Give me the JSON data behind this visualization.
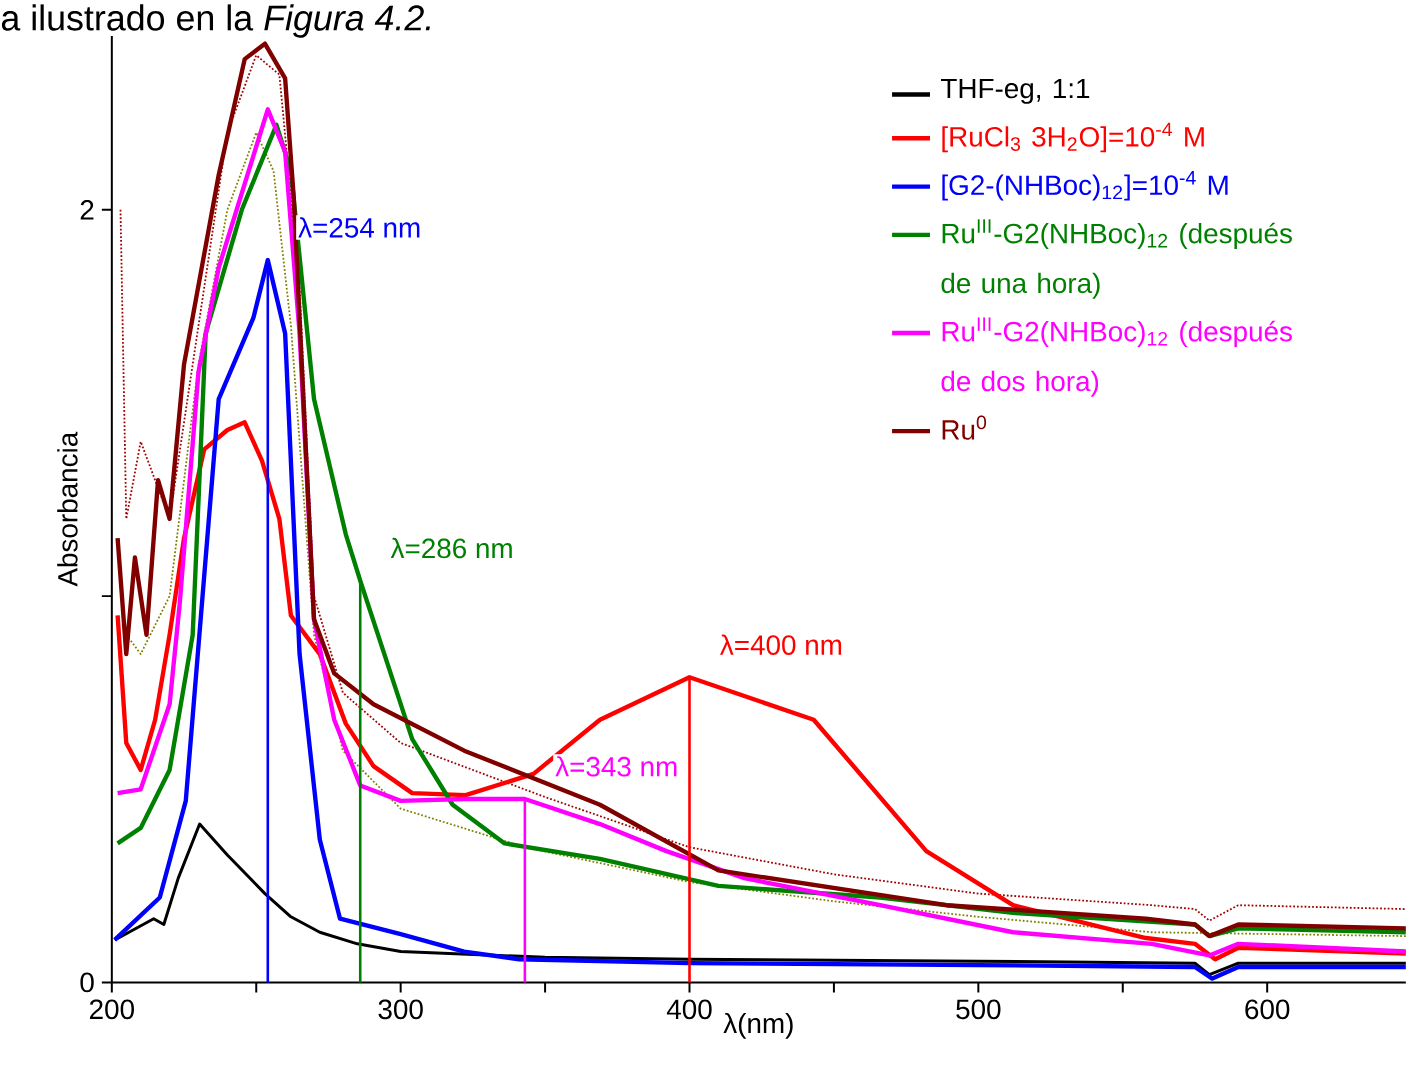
{
  "chart_data": {
    "type": "line",
    "xlabel": "λ(nm)",
    "ylabel": "Absorbancia",
    "annotations": [
      "a ilustrado en la *Figura 4.2.*"
    ],
    "xlim": [
      200,
      648
    ],
    "ylim": [
      0,
      2.45
    ],
    "xticks": [
      200,
      {
        "value": 250,
        "label": null
      },
      300,
      {
        "value": 350,
        "label": null
      },
      400,
      {
        "value": 450,
        "label": null
      },
      500,
      {
        "value": 550,
        "label": null
      },
      600
    ],
    "yticks": [
      0,
      {
        "value": 1,
        "label": null
      },
      2
    ],
    "grid": false,
    "legend": "top right",
    "marker": "none",
    "line_style": "solid",
    "ref_lines": [
      {
        "axis": "x",
        "value": 254,
        "label": "λ=254 nm",
        "color": "#0000ff"
      },
      {
        "axis": "x",
        "value": 286,
        "label": "λ=286 nm",
        "color": "#008000"
      },
      {
        "axis": "x",
        "value": 343,
        "label": "λ=343 nm",
        "color": "#ff00ff"
      },
      {
        "axis": "x",
        "value": 400,
        "label": "λ=400 nm",
        "color": "#ff0000"
      }
    ],
    "series": [
      {
        "color": "#808000",
        "line_style": "dotted",
        "x": [
          205,
          210,
          220,
          230,
          240,
          250,
          256,
          262,
          270,
          280,
          300,
          343,
          400,
          450,
          500,
          560,
          648
        ],
        "values": [
          0.9,
          0.85,
          1.0,
          1.6,
          2.0,
          2.2,
          2.1,
          1.7,
          0.9,
          0.6,
          0.45,
          0.35,
          0.26,
          0.21,
          0.17,
          0.13,
          0.12
        ]
      },
      {
        "color": "#a00000",
        "line_style": "dotted",
        "x": [
          203,
          205,
          210,
          220,
          230,
          240,
          250,
          258,
          265,
          270,
          280,
          300,
          350,
          400,
          450,
          500,
          560,
          575,
          580,
          590,
          648
        ],
        "values": [
          2.0,
          1.2,
          1.4,
          1.2,
          1.7,
          2.2,
          2.4,
          2.35,
          1.8,
          1.0,
          0.75,
          0.62,
          0.48,
          0.35,
          0.28,
          0.23,
          0.2,
          0.19,
          0.16,
          0.2,
          0.19
        ]
      },
      {
        "name": "THF-eg, 1:1",
        "color": "#000000",
        "x": [
          201,
          214.5,
          218,
          223,
          230.4,
          240,
          253,
          262,
          272,
          285,
          300,
          350,
          400,
          500,
          575,
          580,
          590,
          648
        ],
        "values": [
          0.11,
          0.165,
          0.15,
          0.27,
          0.41,
          0.33,
          0.23,
          0.17,
          0.13,
          0.1,
          0.08,
          0.065,
          0.06,
          0.055,
          0.05,
          0.02,
          0.05,
          0.05
        ]
      },
      {
        "name": "[RuCl$_{3}$ 3H$_{2}$O]=10$^{-4}$ M",
        "color": "#ff0000",
        "x": [
          202,
          205,
          210,
          215,
          220,
          225,
          232,
          240,
          246,
          252,
          258,
          262,
          272,
          281,
          290.6,
          304,
          322.5,
          346,
          369,
          400,
          443,
          482,
          512,
          558,
          575,
          582,
          590,
          648
        ],
        "values": [
          0.95,
          0.62,
          0.55,
          0.68,
          0.9,
          1.15,
          1.38,
          1.43,
          1.45,
          1.35,
          1.2,
          0.95,
          0.85,
          0.67,
          0.56,
          0.49,
          0.485,
          0.54,
          0.68,
          0.79,
          0.68,
          0.34,
          0.2,
          0.115,
          0.1,
          0.06,
          0.09,
          0.075
        ]
      },
      {
        "name": "[G2-(NHBoc)$_{12}$]=10$^{-4}$ M",
        "color": "#0000ff",
        "x": [
          201,
          216.6,
          225.6,
          237,
          249,
          254,
          260,
          265,
          272,
          279,
          300,
          322,
          341,
          400,
          500,
          575,
          581,
          590,
          648
        ],
        "values": [
          0.11,
          0.22,
          0.47,
          1.51,
          1.72,
          1.87,
          1.68,
          0.85,
          0.37,
          0.165,
          0.125,
          0.08,
          0.06,
          0.05,
          0.045,
          0.04,
          0.01,
          0.04,
          0.04
        ]
      },
      {
        "name": "Ru$^{III}$-G2(NHBoc)$_{12}$ (después de una hora)",
        "color": "#008000",
        "x": [
          202,
          210,
          220,
          228,
          232.5,
          245,
          257,
          262,
          270,
          281,
          286,
          304,
          318,
          336,
          369,
          410,
          466,
          512,
          575,
          580,
          590,
          648
        ],
        "values": [
          0.36,
          0.4,
          0.55,
          0.9,
          1.68,
          2.0,
          2.22,
          2.1,
          1.51,
          1.16,
          1.04,
          0.63,
          0.46,
          0.36,
          0.32,
          0.25,
          0.22,
          0.18,
          0.15,
          0.12,
          0.14,
          0.13
        ]
      },
      {
        "name": "Ru$^{III}$-G2(NHBoc)$_{12}$ (después de dos hora)",
        "color": "#ff00ff",
        "x": [
          202,
          210,
          220,
          223.5,
          230,
          237,
          254,
          260,
          265,
          270,
          277,
          286,
          300,
          322,
          343,
          369,
          392,
          419,
          466,
          512,
          560,
          580,
          590,
          648
        ],
        "values": [
          0.49,
          0.5,
          0.72,
          0.98,
          1.58,
          1.85,
          2.26,
          2.15,
          1.68,
          0.94,
          0.68,
          0.51,
          0.47,
          0.475,
          0.475,
          0.41,
          0.34,
          0.27,
          0.2,
          0.13,
          0.1,
          0.07,
          0.1,
          0.08
        ]
      },
      {
        "name": "Ru$^{0}$",
        "color": "#800000",
        "x": [
          202,
          205,
          208,
          212,
          216,
          220,
          225,
          237,
          246,
          253,
          260,
          263,
          270,
          277,
          290.6,
          322,
          369,
          410,
          489,
          558,
          575,
          580,
          590,
          648
        ],
        "values": [
          1.15,
          0.85,
          1.1,
          0.9,
          1.3,
          1.2,
          1.6,
          2.09,
          2.39,
          2.43,
          2.34,
          2.03,
          0.94,
          0.8,
          0.72,
          0.6,
          0.46,
          0.29,
          0.2,
          0.165,
          0.15,
          0.12,
          0.15,
          0.14
        ]
      }
    ]
  }
}
